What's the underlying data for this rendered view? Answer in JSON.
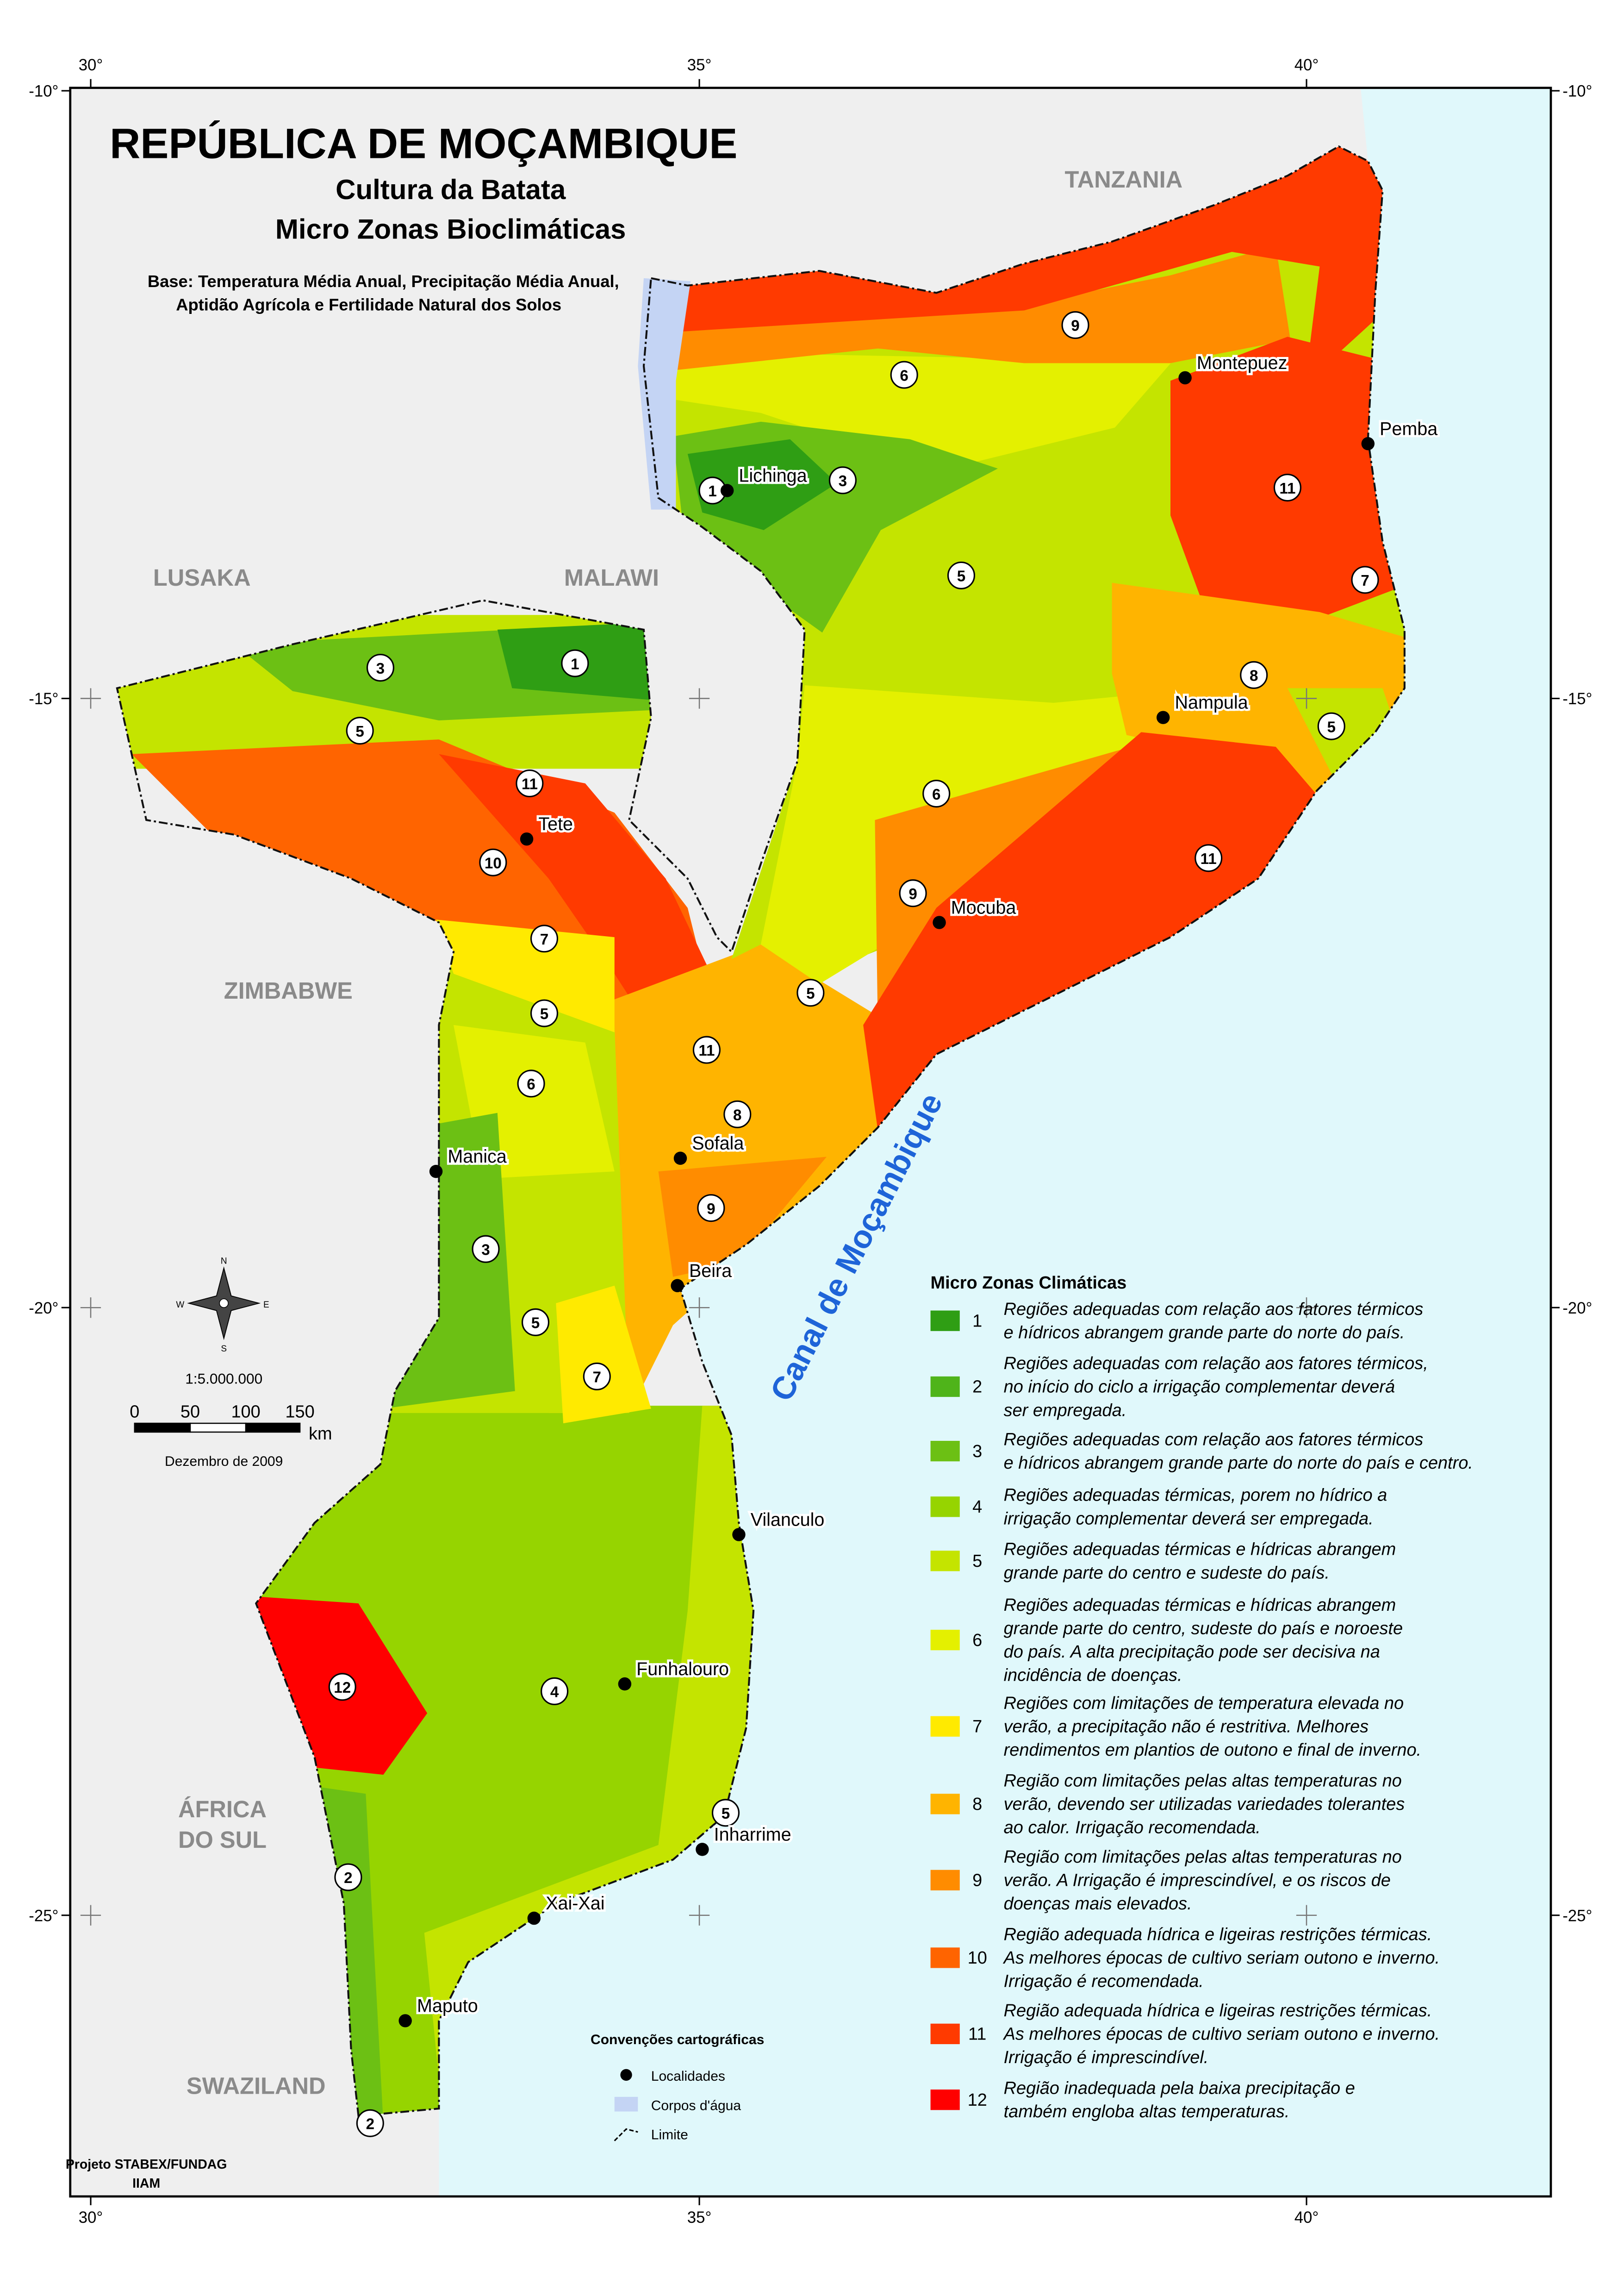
{
  "title": "REPÚBLICA DE MOÇAMBIQUE",
  "subtitle": [
    "Cultura da Batata",
    "Micro Zonas Bioclimáticas"
  ],
  "base": [
    "Base: Temperatura Média Anual, Precipitação Média Anual,",
    "Aptidão Agrícola e Fertilidade Natural dos Solos"
  ],
  "countries": [
    "TANZANIA",
    "LUSAKA",
    "MALAWI",
    "ZIMBABWE",
    "ÁFRICA",
    "DO SUL",
    "SWAZILAND"
  ],
  "lon_ticks": [
    "30°",
    "35°",
    "40°"
  ],
  "lat_ticks": [
    "-10°",
    "-15°",
    "-20°",
    "-25°"
  ],
  "cities": [
    "Lichinga",
    "Montepuez",
    "Pemba",
    "Nampula",
    "Mocuba",
    "Tete",
    "Manica",
    "Sofala",
    "Beira",
    "Vilanculo",
    "Funhalouro",
    "Inharrime",
    "Xai-Xai",
    "Maputo"
  ],
  "zone_markers": [
    "9",
    "6",
    "1",
    "3",
    "11",
    "5",
    "7",
    "8",
    "5",
    "6",
    "11",
    "9",
    "3",
    "1",
    "5",
    "11",
    "10",
    "7",
    "5",
    "5",
    "11",
    "6",
    "8",
    "9",
    "3",
    "5",
    "7",
    "4",
    "12",
    "5",
    "2",
    "2"
  ],
  "sea_label": "Canal de Moçambique",
  "legend": {
    "title": "Micro Zonas Climáticas",
    "items": [
      {
        "label": "1",
        "color": "#2f9e14",
        "description": [
          "Regiões adequadas com relação aos fatores térmicos",
          " e hídricos abrangem grande parte do norte do país."
        ]
      },
      {
        "label": "2",
        "color": "#4fb41a",
        "description": [
          "Regiões adequadas com relação aos fatores térmicos,",
          " no início do ciclo a irrigação complementar deverá",
          "ser empregada."
        ]
      },
      {
        "label": "3",
        "color": "#6cc014",
        "description": [
          "Regiões adequadas com relação aos fatores térmicos",
          " e hídricos abrangem grande parte do norte do país e centro."
        ]
      },
      {
        "label": "4",
        "color": "#96d400",
        "description": [
          "Regiões adequadas térmicas, porem no hídrico a",
          "irrigação complementar deverá ser empregada."
        ]
      },
      {
        "label": "5",
        "color": "#c4e400",
        "description": [
          "Regiões adequadas térmicas e hídricas  abrangem",
          "grande parte do centro e sudeste do país."
        ]
      },
      {
        "label": "6",
        "color": "#e4f000",
        "description": [
          "Regiões adequadas térmicas e hídricas  abrangem",
          "grande parte do centro, sudeste do país e noroeste",
          "do país. A alta precipitação pode ser decisiva na",
          "incidência de doenças."
        ]
      },
      {
        "label": "7",
        "color": "#ffea00",
        "description": [
          "Regiões com limitações de temperatura elevada no",
          "verão, a precipitação não é restritiva. Melhores",
          "rendimentos em plantios de outono e final de inverno."
        ]
      },
      {
        "label": "8",
        "color": "#ffb400",
        "description": [
          "Região com limitações pelas altas temperaturas no",
          "verão, devendo ser utilizadas variedades tolerantes",
          "ao calor. Irrigação recomendada."
        ]
      },
      {
        "label": "9",
        "color": "#ff8c00",
        "description": [
          "Região com limitações pelas altas temperaturas no",
          "verão. A Irrigação é imprescindível, e os riscos de",
          "doenças mais elevados."
        ]
      },
      {
        "label": "10",
        "color": "#ff6400",
        "description": [
          "Região adequada hídrica e ligeiras restrições térmicas.",
          "As melhores épocas de cultivo seriam outono e inverno.",
          "Irrigação é recomendada."
        ]
      },
      {
        "label": "11",
        "color": "#ff3a00",
        "description": [
          "Região adequada hídrica e ligeiras restrições térmicas.",
          "As melhores épocas de cultivo seriam outono e inverno.",
          "Irrigação é imprescindível."
        ]
      },
      {
        "label": "12",
        "color": "#ff0000",
        "description": [
          "Região inadequada pela baixa precipitação e",
          "também engloba altas temperaturas."
        ]
      }
    ]
  },
  "conventions": {
    "title": "Convenções cartográficas",
    "items": [
      "Localidades",
      "Corpos d'água",
      "Limite"
    ]
  },
  "scale": {
    "ratio": "1:5.000.000",
    "ticks": [
      "0",
      "50",
      "100",
      "150"
    ],
    "unit": "km"
  },
  "date": "Dezembro de 2009",
  "compass": [
    "N",
    "E",
    "S",
    "W"
  ],
  "credits": [
    "Projeto STABEX/FUNDAG",
    "IIAM"
  ]
}
